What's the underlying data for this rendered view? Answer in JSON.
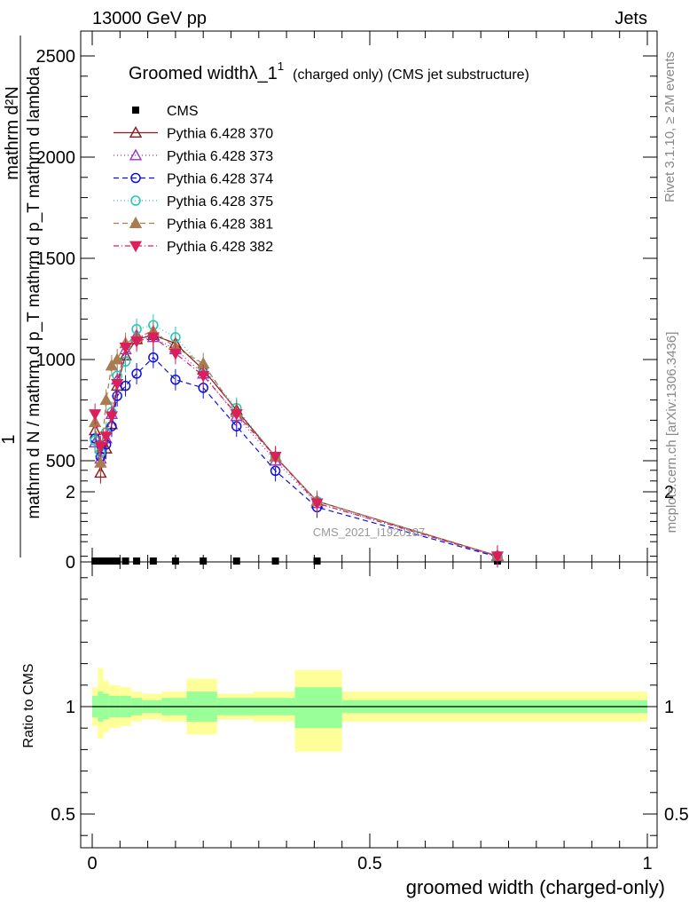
{
  "header": {
    "left": "13000 GeV pp",
    "right": "Jets"
  },
  "side_labels": {
    "rivet": "Rivet 3.1.10, ≥ 2M events",
    "mcplots": "mcplots.cern.ch [arXiv:1306.3436]"
  },
  "watermark": "CMS_2021_I1920187",
  "chart_data": [
    {
      "type": "line",
      "title": "Groomed widthλ_1",
      "title_sup": "1",
      "title_suffix": "(charged only) (CMS jet substructure)",
      "ylabel_top": "1",
      "ylabel_bottom": "mathrm d N / mathrm d p_T mathrm d p_T mathrm d lambda",
      "ylabel_numerator": "mathrm d²N",
      "xlim": [
        0,
        1
      ],
      "ylim": [
        0,
        2500
      ],
      "yticks": [
        0,
        500,
        1000,
        1500,
        2000,
        2500
      ],
      "ytick_labels": [
        "0",
        "500",
        "1000",
        "1500",
        "2000",
        "2500"
      ],
      "x": [
        0.005,
        0.015,
        0.025,
        0.035,
        0.045,
        0.06,
        0.08,
        0.11,
        0.15,
        0.2,
        0.26,
        0.33,
        0.405,
        0.73
      ],
      "series": [
        {
          "name": "CMS",
          "marker": "square",
          "color": "#000000",
          "dash": "none",
          "values": [
            3,
            3,
            3,
            3,
            3,
            3,
            3,
            3,
            3,
            3,
            3,
            3,
            3,
            3
          ]
        },
        {
          "name": "Pythia 6.428 370",
          "marker": "triangle-up-open",
          "color": "#8b1a1a",
          "dash": "none",
          "values": [
            650,
            440,
            560,
            680,
            870,
            1020,
            1100,
            1120,
            1080,
            950,
            750,
            520,
            300,
            30
          ]
        },
        {
          "name": "Pythia 6.428 373",
          "marker": "triangle-up-open",
          "color": "#9932cc",
          "dash": "1,3",
          "values": [
            590,
            510,
            610,
            730,
            900,
            1050,
            1120,
            1110,
            1050,
            930,
            720,
            500,
            290,
            28
          ]
        },
        {
          "name": "Pythia 6.428 374",
          "marker": "circle-open",
          "color": "#1010dd",
          "dash": "6,4",
          "values": [
            610,
            520,
            580,
            670,
            820,
            870,
            930,
            1010,
            900,
            860,
            670,
            450,
            270,
            25
          ]
        },
        {
          "name": "Pythia 6.428 375",
          "marker": "circle-open",
          "color": "#1ec8b8",
          "dash": "1,3",
          "values": [
            600,
            540,
            640,
            740,
            920,
            990,
            1150,
            1170,
            1110,
            960,
            760,
            520,
            300,
            30
          ]
        },
        {
          "name": "Pythia 6.428 381",
          "marker": "triangle-up-filled",
          "color": "#a87c4f",
          "dash": "6,4",
          "values": [
            690,
            490,
            800,
            970,
            1000,
            1080,
            1110,
            1140,
            1060,
            980,
            740,
            520,
            300,
            30
          ]
        },
        {
          "name": "Pythia 6.428 382",
          "marker": "triangle-down-filled",
          "color": "#dc1e5a",
          "dash": "6,3,1,3",
          "values": [
            730,
            570,
            620,
            720,
            880,
            1060,
            1090,
            1110,
            1030,
            920,
            730,
            520,
            290,
            28
          ]
        }
      ]
    },
    {
      "type": "area",
      "ylabel": "Ratio to CMS",
      "xlabel": "groomed width (charged-only)",
      "xlim": [
        0,
        1
      ],
      "ylim": [
        0.35,
        2.3
      ],
      "xticks": [
        0,
        0.5,
        1
      ],
      "xtick_labels": [
        "0",
        "0.5",
        "1"
      ],
      "yticks": [
        0.5,
        1,
        2
      ],
      "ytick_labels": [
        "0.5",
        "1",
        "2"
      ],
      "reference": 1,
      "bins": [
        {
          "x0": 0.0,
          "x1": 0.01,
          "inner": [
            0.95,
            1.05
          ],
          "outer": [
            0.91,
            1.09
          ]
        },
        {
          "x0": 0.01,
          "x1": 0.02,
          "inner": [
            0.93,
            1.07
          ],
          "outer": [
            0.85,
            1.18
          ]
        },
        {
          "x0": 0.02,
          "x1": 0.03,
          "inner": [
            0.94,
            1.06
          ],
          "outer": [
            0.88,
            1.12
          ]
        },
        {
          "x0": 0.03,
          "x1": 0.05,
          "inner": [
            0.95,
            1.05
          ],
          "outer": [
            0.9,
            1.1
          ]
        },
        {
          "x0": 0.05,
          "x1": 0.07,
          "inner": [
            0.95,
            1.05
          ],
          "outer": [
            0.91,
            1.09
          ]
        },
        {
          "x0": 0.07,
          "x1": 0.09,
          "inner": [
            0.96,
            1.04
          ],
          "outer": [
            0.93,
            1.07
          ]
        },
        {
          "x0": 0.09,
          "x1": 0.125,
          "inner": [
            0.97,
            1.03
          ],
          "outer": [
            0.94,
            1.06
          ]
        },
        {
          "x0": 0.125,
          "x1": 0.17,
          "inner": [
            0.96,
            1.04
          ],
          "outer": [
            0.93,
            1.07
          ]
        },
        {
          "x0": 0.17,
          "x1": 0.225,
          "inner": [
            0.93,
            1.07
          ],
          "outer": [
            0.87,
            1.13
          ]
        },
        {
          "x0": 0.225,
          "x1": 0.29,
          "inner": [
            0.96,
            1.04
          ],
          "outer": [
            0.94,
            1.06
          ]
        },
        {
          "x0": 0.29,
          "x1": 0.365,
          "inner": [
            0.96,
            1.04
          ],
          "outer": [
            0.93,
            1.07
          ]
        },
        {
          "x0": 0.365,
          "x1": 0.45,
          "inner": [
            0.9,
            1.09
          ],
          "outer": [
            0.79,
            1.17
          ]
        },
        {
          "x0": 0.45,
          "x1": 1.0,
          "inner": [
            0.97,
            1.03
          ],
          "outer": [
            0.93,
            1.07
          ]
        }
      ],
      "inner_color": "#99ff99",
      "outer_color": "#ffff99"
    }
  ]
}
